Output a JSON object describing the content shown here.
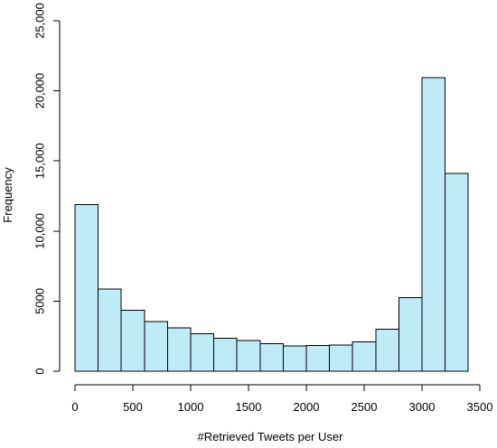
{
  "chart_data": {
    "type": "bar",
    "subtype": "histogram",
    "xlabel": "#Retrieved Tweets per User",
    "ylabel": "Frequency",
    "bar_color": "#bfeaf8",
    "xlim": [
      0,
      3500
    ],
    "ylim": [
      0,
      25000
    ],
    "bins": [
      {
        "x0": 0,
        "x1": 200,
        "value": 11900
      },
      {
        "x0": 200,
        "x1": 400,
        "value": 5850
      },
      {
        "x0": 400,
        "x1": 600,
        "value": 4350
      },
      {
        "x0": 600,
        "x1": 800,
        "value": 3550
      },
      {
        "x0": 800,
        "x1": 1000,
        "value": 3080
      },
      {
        "x0": 1000,
        "x1": 1200,
        "value": 2660
      },
      {
        "x0": 1200,
        "x1": 1400,
        "value": 2350
      },
      {
        "x0": 1400,
        "x1": 1600,
        "value": 2200
      },
      {
        "x0": 1600,
        "x1": 1800,
        "value": 1950
      },
      {
        "x0": 1800,
        "x1": 2000,
        "value": 1820
      },
      {
        "x0": 2000,
        "x1": 2200,
        "value": 1850
      },
      {
        "x0": 2200,
        "x1": 2400,
        "value": 1880
      },
      {
        "x0": 2400,
        "x1": 2600,
        "value": 2100
      },
      {
        "x0": 2600,
        "x1": 2800,
        "value": 3000
      },
      {
        "x0": 2800,
        "x1": 3000,
        "value": 5250
      },
      {
        "x0": 3000,
        "x1": 3200,
        "value": 20950
      },
      {
        "x0": 3200,
        "x1": 3400,
        "value": 14100
      }
    ],
    "x_ticks": [
      {
        "value": 0,
        "label": "0"
      },
      {
        "value": 500,
        "label": "500"
      },
      {
        "value": 1000,
        "label": "1000"
      },
      {
        "value": 1500,
        "label": "1500"
      },
      {
        "value": 2000,
        "label": "2000"
      },
      {
        "value": 2500,
        "label": "2500"
      },
      {
        "value": 3000,
        "label": "3000"
      },
      {
        "value": 3500,
        "label": "3500"
      }
    ],
    "y_ticks": [
      {
        "value": 0,
        "label": "0"
      },
      {
        "value": 5000,
        "label": "5000"
      },
      {
        "value": 10000,
        "label": "10,000"
      },
      {
        "value": 15000,
        "label": "15,000"
      },
      {
        "value": 20000,
        "label": "20,000"
      },
      {
        "value": 25000,
        "label": "25,000"
      }
    ]
  }
}
